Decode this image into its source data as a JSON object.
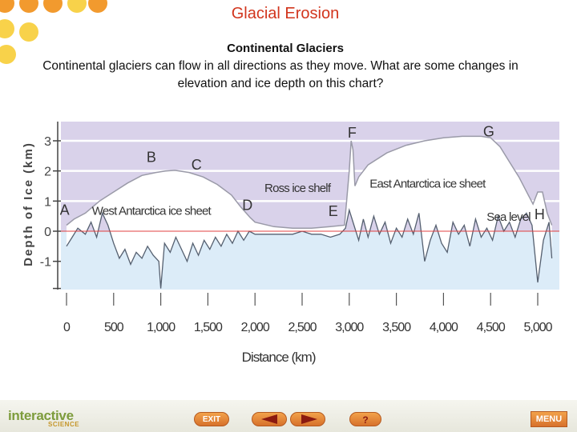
{
  "slide": {
    "title": "Glacial Erosion",
    "subtitle": "Continental Glaciers",
    "body": "Continental glaciers can flow in all directions as they move. What are some changes in elevation and ice depth on this chart?"
  },
  "colors": {
    "title": "#d2351d",
    "dot_orange": "#f29a2e",
    "dot_yellow": "#f8d24a",
    "ice": "#ffffff",
    "sky": "#d9d2ea",
    "water": "#dcecf8",
    "sea_level_line": "#e04040",
    "accent": "#e07a30"
  },
  "chart_data": {
    "type": "area",
    "ylabel": "Depth of Ice (km)",
    "xlabel": "Distance (km)",
    "xlim": [
      0,
      5200
    ],
    "ylim": [
      -1.9,
      3.4
    ],
    "x_ticks": [
      "0",
      "500",
      "1,000",
      "1,500",
      "2,000",
      "2,500",
      "3,000",
      "3,500",
      "4,000",
      "4,500",
      "5,000"
    ],
    "y_ticks": [
      "3",
      "2",
      "1",
      "0",
      "-1"
    ],
    "point_labels": [
      {
        "label": "A",
        "x": -20,
        "y": 0.55
      },
      {
        "label": "B",
        "x": 900,
        "y": 2.3
      },
      {
        "label": "C",
        "x": 1380,
        "y": 2.05
      },
      {
        "label": "D",
        "x": 1920,
        "y": 0.7
      },
      {
        "label": "E",
        "x": 2830,
        "y": 0.5
      },
      {
        "label": "F",
        "x": 3030,
        "y": 3.1
      },
      {
        "label": "G",
        "x": 4480,
        "y": 3.15
      },
      {
        "label": "H",
        "x": 5020,
        "y": 0.4
      }
    ],
    "region_labels": [
      {
        "label": "West Antarctica ice sheet",
        "x": 900,
        "y": 0.55
      },
      {
        "label": "Ross ice shelf",
        "x": 2450,
        "y": 1.3
      },
      {
        "label": "East Antarctica ice sheet",
        "x": 3830,
        "y": 1.45
      },
      {
        "label": "Sea level",
        "x": 4690,
        "y": 0.35
      }
    ],
    "ice_surface": {
      "x": [
        0,
        80,
        200,
        350,
        500,
        650,
        800,
        950,
        1050,
        1150,
        1300,
        1450,
        1600,
        1750,
        1850,
        1950,
        2000,
        2200,
        2400,
        2600,
        2800,
        2950,
        3000,
        3020,
        3040,
        3060,
        3100,
        3200,
        3400,
        3600,
        3800,
        4000,
        4200,
        4400,
        4500,
        4600,
        4700,
        4800,
        4900,
        4950,
        5000,
        5050,
        5100,
        5150
      ],
      "y": [
        0.2,
        0.4,
        0.6,
        1.0,
        1.3,
        1.6,
        1.85,
        1.95,
        2.0,
        2.02,
        1.95,
        1.8,
        1.55,
        1.2,
        0.8,
        0.45,
        0.3,
        0.15,
        0.1,
        0.1,
        0.15,
        0.2,
        2.0,
        3.0,
        2.7,
        1.5,
        1.8,
        2.2,
        2.6,
        2.85,
        3.0,
        3.1,
        3.15,
        3.15,
        3.1,
        2.8,
        2.3,
        1.8,
        1.2,
        0.9,
        1.3,
        1.3,
        0.6,
        0.2
      ]
    },
    "bedrock": {
      "x": [
        0,
        60,
        120,
        200,
        260,
        320,
        380,
        440,
        500,
        560,
        620,
        680,
        740,
        800,
        860,
        920,
        980,
        1000,
        1040,
        1100,
        1160,
        1220,
        1280,
        1340,
        1400,
        1460,
        1520,
        1580,
        1640,
        1700,
        1760,
        1820,
        1880,
        1940,
        2000,
        2100,
        2200,
        2300,
        2400,
        2500,
        2600,
        2700,
        2800,
        2900,
        2960,
        3000,
        3050,
        3100,
        3150,
        3200,
        3260,
        3320,
        3380,
        3440,
        3500,
        3560,
        3620,
        3680,
        3740,
        3800,
        3860,
        3920,
        3980,
        4040,
        4100,
        4160,
        4220,
        4280,
        4340,
        4400,
        4460,
        4520,
        4580,
        4640,
        4700,
        4760,
        4820,
        4880,
        4940,
        5000,
        5060,
        5120,
        5150
      ],
      "y": [
        -0.5,
        -0.2,
        0.1,
        -0.1,
        0.3,
        -0.2,
        0.6,
        0.2,
        -0.4,
        -0.9,
        -0.6,
        -1.1,
        -0.7,
        -0.9,
        -0.5,
        -0.8,
        -1.0,
        -1.9,
        -0.4,
        -0.7,
        -0.2,
        -0.6,
        -1.0,
        -0.4,
        -0.8,
        -0.3,
        -0.6,
        -0.2,
        -0.5,
        -0.1,
        -0.4,
        0.0,
        -0.3,
        0.0,
        -0.1,
        -0.1,
        -0.1,
        -0.1,
        -0.1,
        0.0,
        -0.1,
        -0.1,
        -0.2,
        -0.1,
        0.1,
        0.7,
        0.2,
        -0.3,
        0.4,
        -0.2,
        0.5,
        -0.1,
        0.3,
        -0.4,
        0.1,
        -0.2,
        0.4,
        -0.1,
        0.6,
        -1.0,
        -0.3,
        0.2,
        -0.4,
        -0.7,
        0.3,
        -0.1,
        0.2,
        -0.5,
        0.4,
        -0.2,
        0.1,
        -0.3,
        0.5,
        0.0,
        0.3,
        -0.2,
        0.4,
        0.6,
        0.2,
        -1.7,
        -0.3,
        0.3,
        -0.9
      ]
    },
    "sea_level": 0
  },
  "footer": {
    "brand": "interactive",
    "brand_sub": "SCIENCE",
    "exit_label": "EXIT",
    "help_label": "?",
    "menu_label": "MENU"
  }
}
